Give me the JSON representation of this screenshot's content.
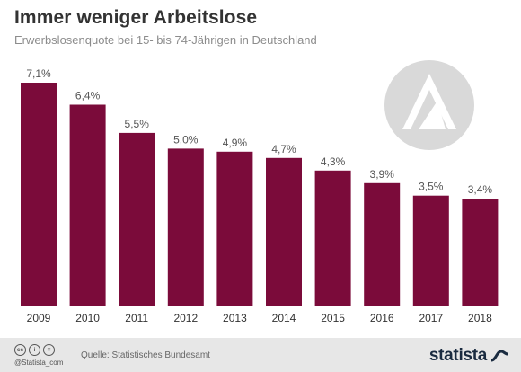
{
  "header": {
    "title": "Immer weniger Arbeitslose",
    "subtitle": "Erwerbslosenquote bei 15- bis 74-Jährigen in Deutschland"
  },
  "footer": {
    "handle": "@Statista_com",
    "source": "Quelle: Statistisches Bundesamt",
    "brand": "statista",
    "license_icons": [
      "cc",
      "i",
      "="
    ]
  },
  "logo": {
    "name": "bundesagentur-fuer-arbeit-logo"
  },
  "colors": {
    "bar": "#7b0b3a",
    "label": "#555555",
    "logo": "#d9d9d9",
    "footer_bg": "#e7e7e7",
    "brand": "#1a2b40"
  },
  "chart_data": {
    "type": "bar",
    "categories": [
      "2009",
      "2010",
      "2011",
      "2012",
      "2013",
      "2014",
      "2015",
      "2016",
      "2017",
      "2018"
    ],
    "values": [
      7.1,
      6.4,
      5.5,
      5.0,
      4.9,
      4.7,
      4.3,
      3.9,
      3.5,
      3.4
    ],
    "value_labels": [
      "7,1%",
      "6,4%",
      "5,5%",
      "5,0%",
      "4,9%",
      "4,7%",
      "4,3%",
      "3,9%",
      "3,5%",
      "3,4%"
    ],
    "unit": "%",
    "title": "Immer weniger Arbeitslose",
    "subtitle": "Erwerbslosenquote bei 15- bis 74-Jährigen in Deutschland",
    "xlabel": "",
    "ylabel": "",
    "ylim": [
      0,
      7.1
    ],
    "grid": false,
    "legend": "none"
  }
}
